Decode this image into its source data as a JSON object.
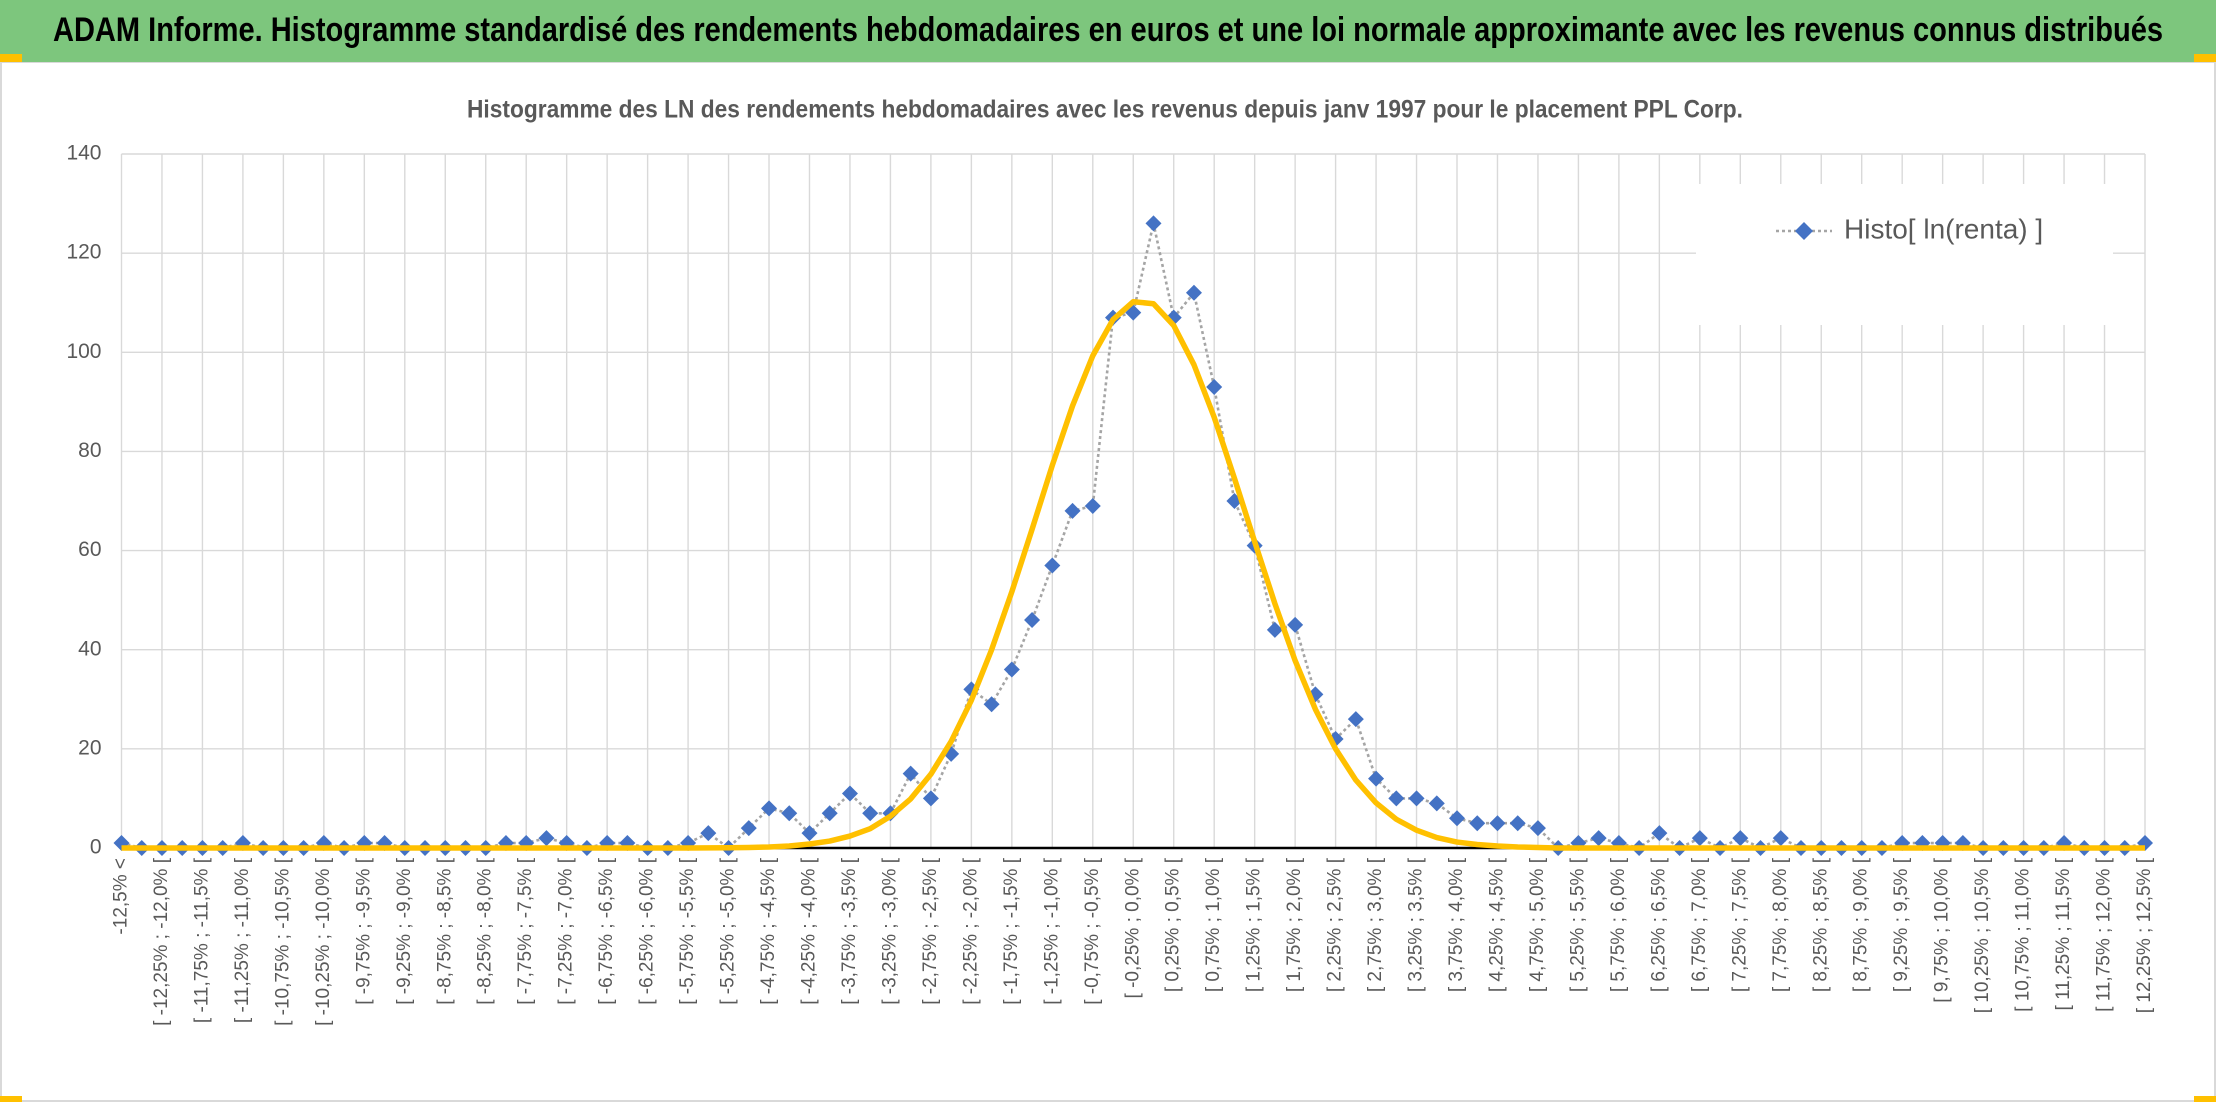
{
  "chart_data": {
    "type": "line",
    "title": "ADAM Informe. Histogramme standardisé des rendements hebdomadaires en euros et une loi normale approximante avec les revenus connus distribués",
    "subtitle": "Histogramme des LN des rendements hebdomadaires avec les revenus depuis janv 1997 pour le placement PPL Corp.",
    "categories": [
      "-12,5% <",
      null,
      "[ -12,25% ; -12,0% [",
      null,
      "[ -11,75% ; -11,5% [",
      null,
      "[ -11,25% ; -11,0% [",
      null,
      "[ -10,75% ; -10,5% [",
      null,
      "[ -10,25% ; -10,0% [",
      null,
      "[ -9,75% ; -9,5% [",
      null,
      "[ -9,25% ; -9,0% [",
      null,
      "[ -8,75% ; -8,5% [",
      null,
      "[ -8,25% ; -8,0% [",
      null,
      "[ -7,75% ; -7,5% [",
      null,
      "[ -7,25% ; -7,0% [",
      null,
      "[ -6,75% ; -6,5% [",
      null,
      "[ -6,25% ; -6,0% [",
      null,
      "[ -5,75% ; -5,5% [",
      null,
      "[ -5,25% ; -5,0% [",
      null,
      "[ -4,75% ; -4,5% [",
      null,
      "[ -4,25% ; -4,0% [",
      null,
      "[ -3,75% ; -3,5% [",
      null,
      "[ -3,25% ; -3,0% [",
      null,
      "[ -2,75% ; -2,5% [",
      null,
      "[ -2,25% ; -2,0% [",
      null,
      "[ -1,75% ; -1,5% [",
      null,
      "[ -1,25% ; -1,0% [",
      null,
      "[ -0,75% ; -0,5% [",
      null,
      "[ -0,25% ; 0,0% [",
      null,
      "[ 0,25% ; 0,5% [",
      null,
      "[ 0,75% ; 1,0% [",
      null,
      "[ 1,25% ; 1,5% [",
      null,
      "[ 1,75% ; 2,0% [",
      null,
      "[ 2,25% ; 2,5% [",
      null,
      "[ 2,75% ; 3,0% [",
      null,
      "[ 3,25% ; 3,5% [",
      null,
      "[ 3,75% ; 4,0% [",
      null,
      "[ 4,25% ; 4,5% [",
      null,
      "[ 4,75% ; 5,0% [",
      null,
      "[ 5,25% ; 5,5% [",
      null,
      "[ 5,75% ; 6,0% [",
      null,
      "[ 6,25% ; 6,5% [",
      null,
      "[ 6,75% ; 7,0% [",
      null,
      "[ 7,25% ; 7,5% [",
      null,
      "[ 7,75% ; 8,0% [",
      null,
      "[ 8,25% ; 8,5% [",
      null,
      "[ 8,75% ; 9,0% [",
      null,
      "[ 9,25% ; 9,5% [",
      null,
      "[ 9,75% ; 10,0% [",
      null,
      "[ 10,25% ; 10,5% [",
      null,
      "[ 10,75% ; 11,0% [",
      null,
      "[ 11,25% ; 11,5% [",
      null,
      "[ 11,75% ; 12,0% [",
      null,
      "[ 12,25% ; 12,5% ["
    ],
    "series": [
      {
        "name": "Histo[ ln(renta) ]",
        "color": "#4472c4",
        "line_color": "#a5a5a5",
        "marker": "diamond",
        "dash": "dotted",
        "values": [
          1,
          0,
          0,
          0,
          0,
          0,
          1,
          0,
          0,
          0,
          1,
          0,
          1,
          1,
          0,
          0,
          0,
          0,
          0,
          1,
          1,
          2,
          1,
          0,
          1,
          1,
          0,
          0,
          1,
          3,
          0,
          4,
          8,
          7,
          3,
          7,
          11,
          7,
          7,
          15,
          10,
          19,
          32,
          29,
          36,
          46,
          57,
          68,
          69,
          107,
          108,
          126,
          107,
          112,
          93,
          70,
          61,
          44,
          45,
          31,
          22,
          26,
          14,
          10,
          10,
          9,
          6,
          5,
          5,
          5,
          4,
          0,
          1,
          2,
          1,
          0,
          3,
          0,
          2,
          0,
          2,
          0,
          2,
          0,
          0,
          0,
          0,
          0,
          1,
          1,
          1,
          1,
          0,
          0,
          0,
          0,
          1,
          0,
          0,
          0,
          1
        ]
      },
      {
        "color": "#ffc000",
        "marker": "none",
        "values": [
          0,
          0,
          0,
          0,
          0,
          0,
          0,
          0,
          0,
          0,
          0,
          0,
          0,
          0,
          0,
          0,
          0,
          0,
          0,
          0,
          0,
          0,
          0,
          0,
          0,
          0,
          0,
          0,
          0,
          0.02,
          0.05,
          0.1,
          0.2,
          0.4,
          0.8,
          1.4,
          2.4,
          3.9,
          6.4,
          9.9,
          14.9,
          21.5,
          29.8,
          40,
          51.7,
          64.3,
          77.2,
          89.2,
          99.3,
          106.6,
          110.2,
          109.8,
          105.4,
          97.5,
          86.9,
          74.6,
          61.8,
          49.3,
          37.8,
          28,
          20,
          13.7,
          9.1,
          5.8,
          3.6,
          2.1,
          1.2,
          0.7,
          0.4,
          0.2,
          0.1,
          0,
          0,
          0,
          0,
          0,
          0,
          0,
          0,
          0,
          0,
          0,
          0,
          0,
          0,
          0,
          0,
          0,
          0,
          0,
          0,
          0,
          0,
          0,
          0,
          0,
          0,
          0,
          0,
          0,
          0
        ]
      }
    ],
    "ylim": [
      0,
      140
    ],
    "yticks": [
      0,
      20,
      40,
      60,
      80,
      100,
      120,
      140
    ],
    "grid": true,
    "legend": "top-right"
  }
}
